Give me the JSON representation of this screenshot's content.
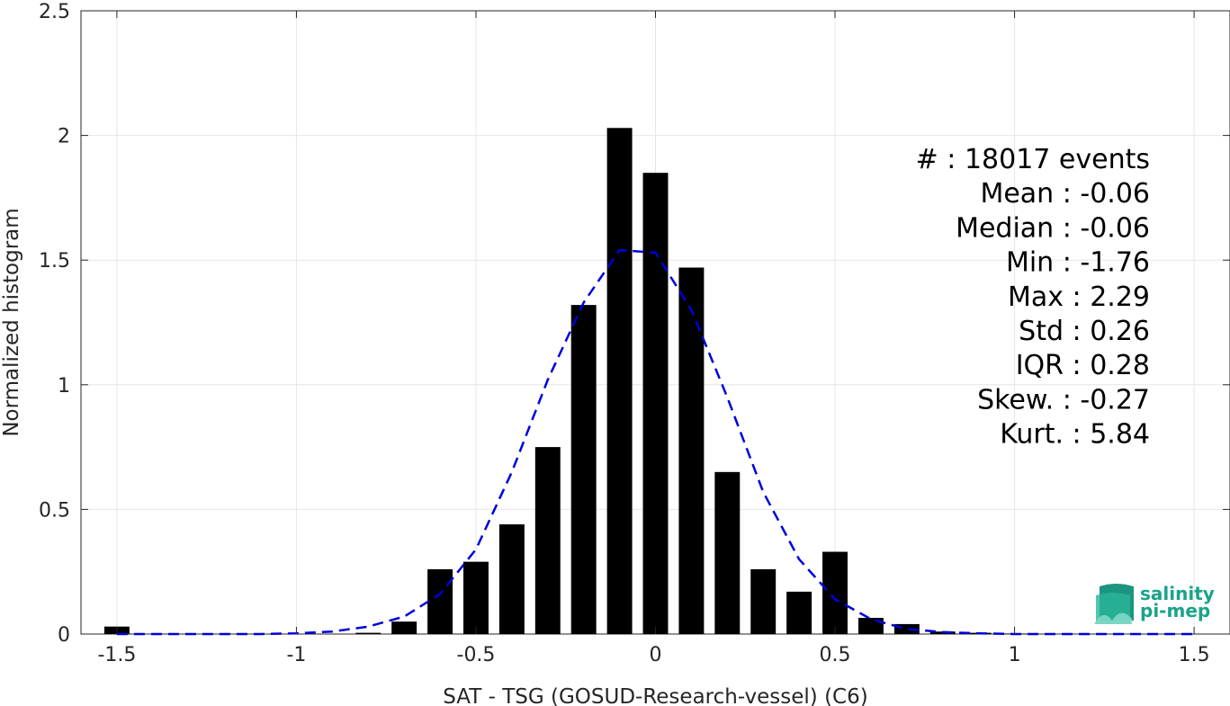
{
  "chart_data": {
    "type": "bar",
    "xlabel": "SAT - TSG (GOSUD-Research-vessel) (C6)",
    "ylabel": "Normalized histogram",
    "xlim": [
      -1.6,
      1.6
    ],
    "ylim": [
      0,
      2.5
    ],
    "xticks": [
      -1.5,
      -1,
      -0.5,
      0,
      0.5,
      1,
      1.5
    ],
    "xtick_labels": [
      "-1.5",
      "-1",
      "-0.5",
      "0",
      "0.5",
      "1",
      "1.5"
    ],
    "yticks": [
      0,
      0.5,
      1,
      1.5,
      2,
      2.5
    ],
    "ytick_labels": [
      "0",
      "0.5",
      "1",
      "1.5",
      "2",
      "2.5"
    ],
    "grid": true,
    "bar_color": "#000000",
    "bar_width": 0.07,
    "bars": {
      "x": [
        -1.5,
        -1.4,
        -1.3,
        -1.2,
        -1.1,
        -1.0,
        -0.9,
        -0.8,
        -0.7,
        -0.6,
        -0.5,
        -0.4,
        -0.3,
        -0.2,
        -0.1,
        0.0,
        0.1,
        0.2,
        0.3,
        0.4,
        0.5,
        0.6,
        0.7,
        0.8,
        0.9,
        1.0,
        1.1,
        1.2,
        1.3,
        1.4,
        1.5
      ],
      "values": [
        0.03,
        0.0,
        0.0,
        0.0,
        0.0,
        0.0,
        0.0,
        0.005,
        0.05,
        0.26,
        0.29,
        0.44,
        0.75,
        1.32,
        2.03,
        1.85,
        1.47,
        0.65,
        0.26,
        0.17,
        0.33,
        0.065,
        0.04,
        0.01,
        0.005,
        0.002,
        0.0,
        0.0,
        0.0,
        0.0,
        0.0
      ]
    },
    "fit_curve": {
      "color": "#0000dd",
      "style": "dashed",
      "x": [
        -1.5,
        -1.4,
        -1.3,
        -1.2,
        -1.1,
        -1.0,
        -0.9,
        -0.8,
        -0.7,
        -0.6,
        -0.5,
        -0.4,
        -0.3,
        -0.2,
        -0.1,
        0.0,
        0.1,
        0.2,
        0.3,
        0.4,
        0.5,
        0.6,
        0.7,
        0.8,
        0.9,
        1.0,
        1.1,
        1.2,
        1.3,
        1.4,
        1.5
      ],
      "y": [
        0.0,
        0.0,
        0.0,
        0.0,
        0.0,
        0.003,
        0.01,
        0.03,
        0.07,
        0.16,
        0.34,
        0.65,
        1.02,
        1.33,
        1.54,
        1.53,
        1.3,
        0.95,
        0.57,
        0.3,
        0.14,
        0.06,
        0.02,
        0.008,
        0.003,
        0.0,
        0.0,
        0.0,
        0.0,
        0.0,
        0.0
      ]
    },
    "stats": [
      "#  : 18017 events",
      "Mean : -0.06",
      "Median : -0.06",
      "Min : -1.76",
      "Max : 2.29",
      "Std : 0.26",
      "IQR : 0.28",
      "Skew. : -0.27",
      "Kurt. : 5.84"
    ]
  },
  "logo": {
    "line1": "salinity",
    "line2": "pi-mep",
    "color": "#1aa38a"
  }
}
